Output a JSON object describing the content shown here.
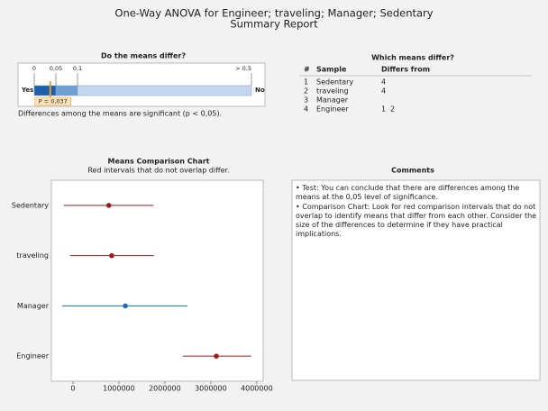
{
  "header": {
    "title": "One-Way ANOVA for Engineer; traveling; Manager; Sedentary",
    "subtitle": "Summary Report"
  },
  "pvalue_panel": {
    "title": "Do the means differ?",
    "low_label": "Yes",
    "high_label": "No",
    "ticks": [
      {
        "value": 0,
        "label": "0"
      },
      {
        "value": 0.05,
        "label": "0,05"
      },
      {
        "value": 0.1,
        "label": "0,1"
      },
      {
        "value": 0.5,
        "label": "> 0,5"
      }
    ],
    "p_value": 0.037,
    "p_label": "P = 0,037",
    "conclusion": "Differences among the means are significant (p < 0,05)."
  },
  "which_means": {
    "title": "Which means differ?",
    "headers": [
      "#",
      "Sample",
      "Differs from"
    ],
    "rows": [
      {
        "n": 1,
        "sample": "Sedentary",
        "differs": [
          4
        ]
      },
      {
        "n": 2,
        "sample": "traveling",
        "differs": [
          4
        ]
      },
      {
        "n": 3,
        "sample": "Manager",
        "differs": []
      },
      {
        "n": 4,
        "sample": "Engineer",
        "differs": [
          1,
          2
        ]
      }
    ]
  },
  "chart_data": {
    "type": "interval",
    "title": "Means Comparison Chart",
    "subtitle": "Red intervals that do not overlap differ.",
    "categories": [
      "Sedentary",
      "traveling",
      "Manager",
      "Engineer"
    ],
    "values": [
      780000,
      843000,
      1140000,
      3120000
    ],
    "lower": [
      -200000,
      -60000,
      -235000,
      2390000
    ],
    "upper": [
      1750000,
      1760000,
      2490000,
      3880000
    ],
    "colors": [
      "#a01c1c",
      "#a01c1c",
      "#1f6eb4",
      "#a01c1c"
    ],
    "xlim": [
      -470000,
      4140000
    ],
    "xticks": [
      0,
      1000000,
      2000000,
      3000000,
      4000000
    ]
  },
  "comments": {
    "title": "Comments",
    "items": [
      "•  Test: You can conclude that there are differences among the means at the 0,05 level of significance.",
      "•  Comparison Chart: Look for red comparison intervals that do not overlap to identify means that differ from each other. Consider the size of the differences to determine if they have practical implications."
    ]
  }
}
